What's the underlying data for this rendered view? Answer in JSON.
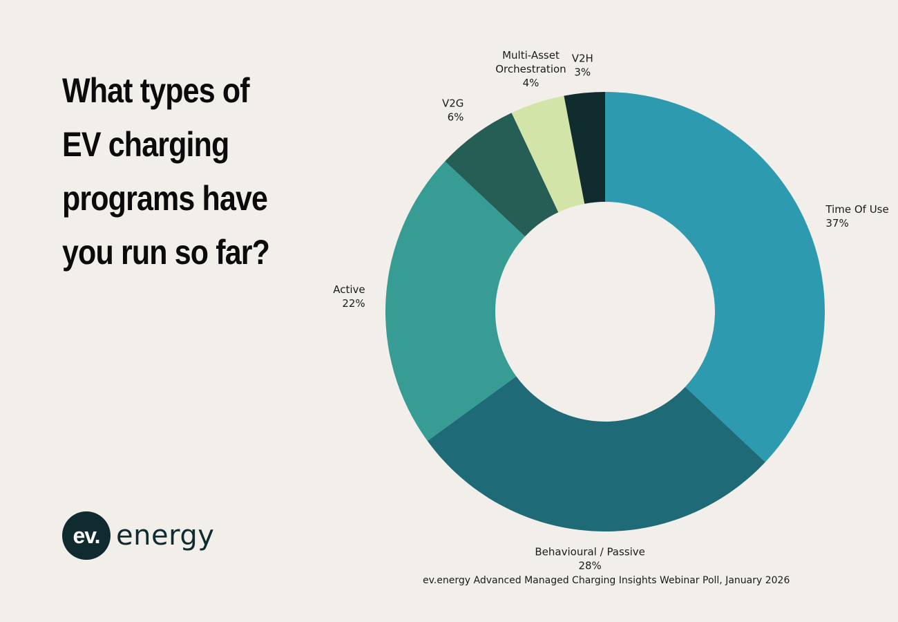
{
  "headline": {
    "lines": [
      "What types of",
      "EV charging",
      "programs have",
      "you run so far?"
    ]
  },
  "logo": {
    "mark": "ev.",
    "word": "energy"
  },
  "source": "ev.energy Advanced Managed Charging Insights Webinar Poll, January 2026",
  "chart_data": {
    "type": "pie",
    "title": "What types of EV charging programs have you run so far?",
    "donut": true,
    "slices": [
      {
        "label": "Time Of Use",
        "value": 37,
        "display": "37%",
        "color": "#2e9aaf"
      },
      {
        "label": "Behavioural / Passive",
        "value": 28,
        "display": "28%",
        "color": "#1e6a76"
      },
      {
        "label": "Active",
        "value": 22,
        "display": "22%",
        "color": "#369c94"
      },
      {
        "label": "V2G",
        "value": 6,
        "display": "6%",
        "color": "#255e55"
      },
      {
        "label": "Multi-Asset Orchestration",
        "label_lines": [
          "Multi-Asset",
          "Orchestration"
        ],
        "value": 4,
        "display": "4%",
        "color": "#d3e4a8"
      },
      {
        "label": "V2H",
        "value": 3,
        "display": "3%",
        "color": "#102c2f"
      }
    ]
  }
}
